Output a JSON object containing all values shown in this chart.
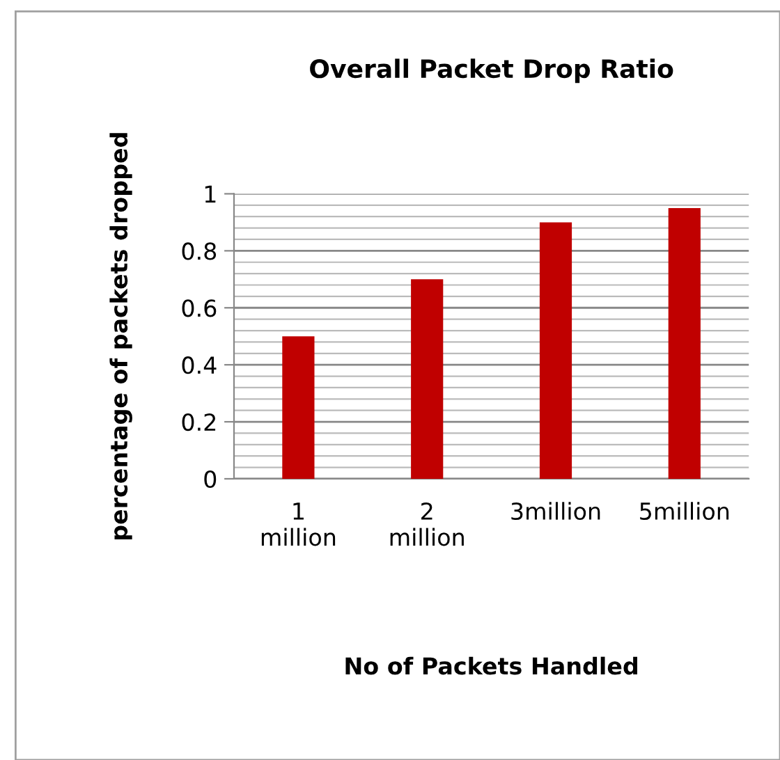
{
  "chart_data": {
    "type": "bar",
    "title": "Overall Packet Drop Ratio",
    "xlabel": "No of Packets Handled",
    "ylabel": "percentage of packets dropped",
    "categories": [
      "1\nmillion",
      "2\nmillion",
      "3million",
      "5million"
    ],
    "values": [
      0.5,
      0.7,
      0.9,
      0.95
    ],
    "color": "#c00000",
    "ylim": [
      0,
      1
    ],
    "yticks": [
      0,
      0.2,
      0.4,
      0.6,
      0.8,
      1
    ],
    "grid": "y",
    "legend": false
  }
}
